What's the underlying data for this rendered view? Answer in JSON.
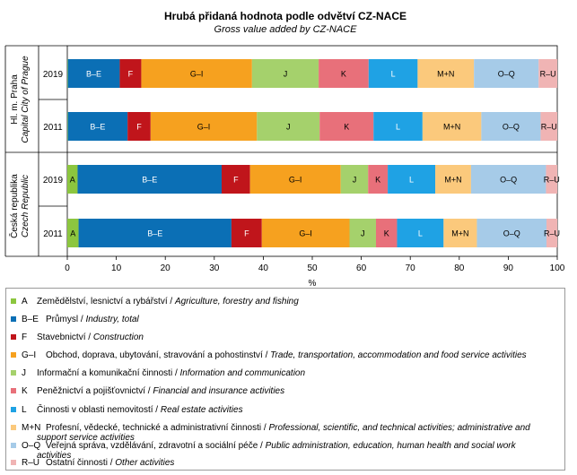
{
  "chart_data": {
    "type": "bar",
    "orientation": "horizontal-stacked-100",
    "title": "Hrubá přidaná hodnota podle odvětví CZ-NACE",
    "subtitle": "Gross value added by CZ-NACE",
    "xlabel": "%",
    "xlim": [
      0,
      100
    ],
    "xticks": [
      "0",
      "10",
      "20",
      "30",
      "40",
      "50",
      "60",
      "70",
      "80",
      "90",
      "100"
    ],
    "groups": [
      {
        "label": "Hl. m. Praha",
        "label_en": "Capital City of Prague"
      },
      {
        "label": "Česká republika",
        "label_en": "Czech Republic"
      }
    ],
    "bars": [
      {
        "group": 0,
        "year": "2019",
        "values": [
          0.1,
          10.6,
          4.4,
          22.6,
          13.6,
          10.2,
          10.0,
          11.5,
          13.2,
          3.8
        ]
      },
      {
        "group": 0,
        "year": "2011",
        "values": [
          0.1,
          12.2,
          4.7,
          21.7,
          12.8,
          11.0,
          10.0,
          12.0,
          12.1,
          3.4
        ]
      },
      {
        "group": 1,
        "year": "2019",
        "values": [
          2.1,
          29.4,
          5.8,
          18.5,
          5.6,
          4.0,
          9.7,
          7.3,
          15.3,
          2.3
        ]
      },
      {
        "group": 1,
        "year": "2011",
        "values": [
          2.3,
          31.2,
          6.2,
          17.9,
          5.4,
          4.3,
          9.5,
          6.8,
          14.2,
          2.2
        ]
      }
    ],
    "series": [
      {
        "code": "A",
        "color": "#8cc63f",
        "name_cz": "Zemědělství, lesnictví a rybářství",
        "name_en": "Agriculture, forestry and fishing"
      },
      {
        "code": "B–E",
        "color": "#0b6fb5",
        "name_cz": "Průmysl",
        "name_en": "Industry, total"
      },
      {
        "code": "F",
        "color": "#c0151b",
        "name_cz": "Stavebnictví",
        "name_en": "Construction"
      },
      {
        "code": "G–I",
        "color": "#f6a11f",
        "name_cz": "Obchod, doprava, ubytování, stravování a pohostinství",
        "name_en": "Trade, transportation, accommodation and food service activities"
      },
      {
        "code": "J",
        "color": "#a5d16c",
        "name_cz": "Informační a komunikační činnosti",
        "name_en": "Information and communication"
      },
      {
        "code": "K",
        "color": "#e8707a",
        "name_cz": "Peněžnictví a pojišťovnictví",
        "name_en": "Financial and insurance activities"
      },
      {
        "code": "L",
        "color": "#1fa2e4",
        "name_cz": "Činnosti v oblasti nemovitostí",
        "name_en": "Real estate activities"
      },
      {
        "code": "M+N",
        "color": "#fbc97c",
        "name_cz": "Profesní, vědecké, technické a administrativní činnosti",
        "name_en": "Professional, scientific, and technical activities; administrative and support service activities"
      },
      {
        "code": "O–Q",
        "color": "#a6cbe8",
        "name_cz": "Veřejná správa, vzdělávání, zdravotní a sociální péče",
        "name_en": "Public administration, education, human health and social work activities"
      },
      {
        "code": "R–U",
        "color": "#f0b4b4",
        "name_cz": "Ostatní činnosti",
        "name_en": "Other activities"
      }
    ],
    "grid": false,
    "legend": "bottom"
  }
}
